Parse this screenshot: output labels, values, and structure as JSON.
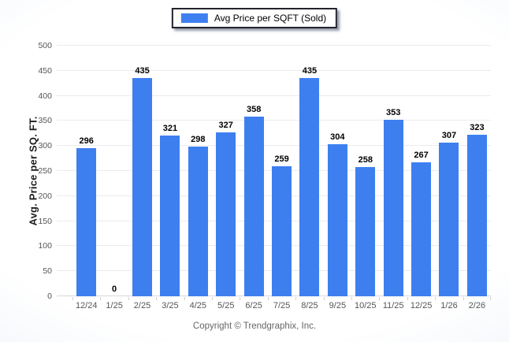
{
  "legend": {
    "label": "Avg Price per SQFT (Sold)"
  },
  "footer": "Copyright © Trendgraphix, Inc.",
  "colors": {
    "bar": "#3E7FF0",
    "legend_border": "#23232e",
    "grid": "#ebebeb",
    "baseline": "#d8d8d8",
    "tick_text": "#555555",
    "value_text": "#000000",
    "footer_text": "#666666"
  },
  "chart_data": {
    "type": "bar",
    "title": "",
    "series_name": "Avg Price per SQFT (Sold)",
    "categories": [
      "12/24",
      "1/25",
      "2/25",
      "3/25",
      "4/25",
      "5/25",
      "6/25",
      "7/25",
      "8/25",
      "9/25",
      "10/25",
      "11/25",
      "12/25",
      "1/26",
      "2/26"
    ],
    "values": [
      296,
      0,
      435,
      321,
      298,
      327,
      358,
      259,
      435,
      304,
      258,
      353,
      267,
      307,
      323
    ],
    "xlabel": "",
    "ylabel": "Avg. Price per SQ. FT.",
    "ylim": [
      0,
      500
    ],
    "yticks": [
      0,
      50,
      100,
      150,
      200,
      250,
      300,
      350,
      400,
      450,
      500
    ],
    "grid": true,
    "legend_position": "top"
  }
}
